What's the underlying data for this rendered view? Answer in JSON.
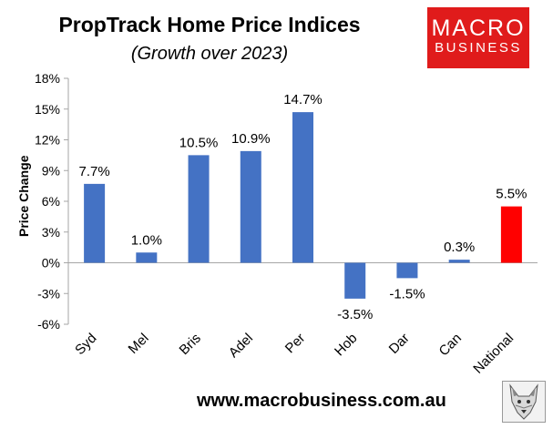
{
  "header": {
    "title": "PropTrack Home Price Indices",
    "subtitle": "(Growth over 2023)"
  },
  "logo": {
    "line1": "MACRO",
    "line2": "BUSINESS",
    "color": "#e01b1b"
  },
  "footer": {
    "url": "www.macrobusiness.com.au",
    "icon": "wolf-logo-icon"
  },
  "chart_data": {
    "type": "bar",
    "title": "PropTrack Home Price Indices",
    "subtitle": "(Growth over 2023)",
    "xlabel": "",
    "ylabel": "Price Change",
    "categories": [
      "Syd",
      "Mel",
      "Bris",
      "Adel",
      "Per",
      "Hob",
      "Dar",
      "Can",
      "National"
    ],
    "values": [
      7.7,
      1.0,
      10.5,
      10.9,
      14.7,
      -3.5,
      -1.5,
      0.3,
      5.5
    ],
    "data_labels": [
      "7.7%",
      "1.0%",
      "10.5%",
      "10.9%",
      "14.7%",
      "-3.5%",
      "-1.5%",
      "0.3%",
      "5.5%"
    ],
    "ylim": [
      -6,
      18
    ],
    "yticks": [
      -6,
      -3,
      0,
      3,
      6,
      9,
      12,
      15,
      18
    ],
    "ytick_labels": [
      "-6%",
      "-3%",
      "0%",
      "3%",
      "6%",
      "9%",
      "12%",
      "15%",
      "18%"
    ],
    "bar_colors": [
      "#4472c4",
      "#4472c4",
      "#4472c4",
      "#4472c4",
      "#4472c4",
      "#4472c4",
      "#4472c4",
      "#4472c4",
      "#ff0000"
    ],
    "grid": false,
    "legend": "none"
  }
}
